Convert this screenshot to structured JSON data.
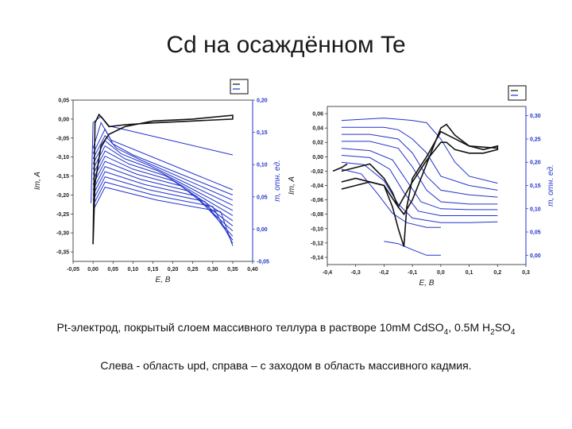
{
  "slide": {
    "title": "Cd на осаждённом Te",
    "caption_part1": "Pt-электрод, покрытый слоем массивного теллура в растворе 10mM CdSO",
    "caption_sub1": "4",
    "caption_part2": ", 0.5M H",
    "caption_sub2": "2",
    "caption_part3": "SO",
    "caption_sub3": "4",
    "caption_line2": "Слева - область upd, справа – с заходом в область массивного кадмия."
  },
  "colors": {
    "blue": "#2233cc",
    "black": "#111111",
    "axis_right": "#2233cc"
  },
  "chart_data": [
    {
      "type": "line",
      "xlabel": "E, В",
      "ylabel_left": "Im, A",
      "ylabel_right": "m, отн. ед.",
      "xlim": [
        -0.05,
        0.4
      ],
      "ylim_left": [
        -0.375,
        0.05
      ],
      "ylim_right": [
        -0.05,
        0.2
      ],
      "x_ticks": [
        "-0,05",
        "0,00",
        "0,05",
        "0,10",
        "0,15",
        "0,20",
        "0,25",
        "0,30",
        "0,35",
        "0,40"
      ],
      "y_left_ticks": [
        "0,05",
        "0,00",
        "-0,05",
        "-0,10",
        "-0,15",
        "-0,20",
        "-0,25",
        "-0,30",
        "-0,35"
      ],
      "y_right_ticks": [
        "0,20",
        "0,15",
        "0,10",
        "0,05",
        "0,00",
        "-0,05"
      ],
      "current_series": [
        {
          "x": [
            0.0,
            0.005,
            0.02,
            0.04,
            0.08,
            0.15,
            0.25,
            0.35,
            0.35,
            0.25,
            0.15,
            0.08,
            0.04,
            0.025,
            0.015,
            0.005,
            0.0
          ],
          "y": [
            -0.33,
            -0.17,
            -0.07,
            -0.04,
            -0.02,
            -0.005,
            0.0,
            0.01,
            0.0,
            -0.005,
            -0.01,
            -0.015,
            -0.02,
            0.0,
            0.012,
            -0.01,
            -0.33
          ]
        }
      ],
      "mass_series": [
        {
          "x": [
            -0.005,
            0.0,
            0.02,
            0.04,
            0.35
          ],
          "y": [
            0.04,
            0.165,
            0.175,
            0.16,
            0.115
          ]
        },
        {
          "x": [
            0.0,
            0.02,
            0.045,
            0.35
          ],
          "y": [
            0.125,
            0.165,
            0.138,
            0.061
          ]
        },
        {
          "x": [
            0.0,
            0.03,
            0.05,
            0.1,
            0.35
          ],
          "y": [
            0.117,
            0.155,
            0.132,
            0.115,
            0.053
          ]
        },
        {
          "x": [
            0.0,
            0.03,
            0.06,
            0.12,
            0.35
          ],
          "y": [
            0.109,
            0.145,
            0.125,
            0.107,
            0.045
          ]
        },
        {
          "x": [
            0.0,
            0.03,
            0.07,
            0.14,
            0.35
          ],
          "y": [
            0.101,
            0.137,
            0.117,
            0.099,
            0.037
          ]
        },
        {
          "x": [
            0.0,
            0.03,
            0.08,
            0.16,
            0.35
          ],
          "y": [
            0.093,
            0.129,
            0.109,
            0.091,
            0.029
          ]
        },
        {
          "x": [
            0.0,
            0.03,
            0.09,
            0.18,
            0.35
          ],
          "y": [
            0.085,
            0.121,
            0.101,
            0.083,
            0.021
          ]
        },
        {
          "x": [
            0.0,
            0.03,
            0.1,
            0.2,
            0.35
          ],
          "y": [
            0.077,
            0.113,
            0.093,
            0.075,
            0.013
          ]
        },
        {
          "x": [
            0.0,
            0.03,
            0.11,
            0.22,
            0.35
          ],
          "y": [
            0.069,
            0.105,
            0.085,
            0.067,
            0.005
          ]
        },
        {
          "x": [
            0.0,
            0.03,
            0.12,
            0.24,
            0.35
          ],
          "y": [
            0.061,
            0.097,
            0.077,
            0.059,
            -0.003
          ]
        },
        {
          "x": [
            0.0,
            0.03,
            0.13,
            0.26,
            0.35
          ],
          "y": [
            0.053,
            0.089,
            0.069,
            0.051,
            -0.011
          ]
        },
        {
          "x": [
            0.0,
            0.03,
            0.14,
            0.28,
            0.35
          ],
          "y": [
            0.045,
            0.081,
            0.061,
            0.043,
            -0.017
          ]
        },
        {
          "x": [
            0.0,
            0.03,
            0.15,
            0.3,
            0.35
          ],
          "y": [
            0.037,
            0.073,
            0.053,
            0.035,
            -0.022
          ]
        },
        {
          "x": [
            0.0,
            0.03,
            0.16,
            0.32,
            0.35
          ],
          "y": [
            0.029,
            0.065,
            0.045,
            0.027,
            -0.026
          ]
        }
      ]
    },
    {
      "type": "line",
      "xlabel": "E, В",
      "ylabel_left": "Im, A",
      "ylabel_right": "m, отн. ед.",
      "xlim": [
        -0.4,
        0.3
      ],
      "ylim_left": [
        -0.15,
        0.07
      ],
      "ylim_right": [
        -0.02,
        0.32
      ],
      "x_ticks": [
        "-0,4",
        "-0,3",
        "-0,2",
        "-0,1",
        "0,0",
        "0,1",
        "0,2",
        "0,3"
      ],
      "y_left_ticks": [
        "0,06",
        "0,04",
        "0,02",
        "0,00",
        "-0,02",
        "-0,04",
        "-0,06",
        "-0,08",
        "-0,10",
        "-0,12",
        "-0,14"
      ],
      "y_right_ticks": [
        "0,30",
        "0,25",
        "0,20",
        "0,15",
        "0,10",
        "0,05",
        "0,00"
      ],
      "current_series": [
        {
          "x": [
            -0.35,
            -0.3,
            -0.25,
            -0.2,
            -0.17,
            -0.15,
            -0.13,
            -0.1,
            -0.07,
            -0.05,
            -0.02,
            0.0,
            0.02,
            0.05,
            0.1,
            0.15,
            0.2,
            0.2,
            0.15,
            0.1,
            0.05,
            0.02,
            0.0,
            -0.05,
            -0.1,
            -0.15,
            -0.2,
            -0.3,
            -0.35
          ],
          "y": [
            -0.02,
            -0.015,
            -0.01,
            -0.03,
            -0.05,
            -0.07,
            -0.08,
            -0.06,
            -0.03,
            -0.01,
            0.02,
            0.04,
            0.045,
            0.03,
            0.015,
            0.01,
            0.015,
            0.01,
            0.005,
            0.005,
            0.01,
            0.02,
            0.02,
            -0.005,
            -0.035,
            -0.07,
            -0.04,
            -0.03,
            -0.035
          ]
        },
        {
          "x": [
            -0.35,
            -0.3,
            -0.25,
            -0.2,
            -0.17,
            -0.15,
            -0.13,
            -0.12,
            -0.1,
            -0.05,
            0.0,
            0.05,
            0.1,
            0.2
          ],
          "y": [
            -0.045,
            -0.04,
            -0.035,
            -0.04,
            -0.07,
            -0.1,
            -0.125,
            -0.07,
            -0.03,
            0.0,
            0.035,
            0.025,
            0.015,
            0.012
          ]
        },
        {
          "x": [
            -0.38,
            -0.35,
            -0.33
          ],
          "y": [
            -0.02,
            -0.015,
            -0.01
          ]
        }
      ],
      "mass_series": [
        {
          "x": [
            -0.35,
            -0.2,
            -0.1,
            -0.05,
            0.0,
            0.05,
            0.1,
            0.2
          ],
          "y": [
            0.29,
            0.295,
            0.29,
            0.285,
            0.25,
            0.2,
            0.17,
            0.155
          ]
        },
        {
          "x": [
            -0.35,
            -0.2,
            -0.15,
            -0.1,
            -0.05,
            0.0,
            0.1,
            0.2
          ],
          "y": [
            0.275,
            0.275,
            0.27,
            0.25,
            0.22,
            0.17,
            0.15,
            0.14
          ]
        },
        {
          "x": [
            -0.35,
            -0.25,
            -0.15,
            -0.1,
            -0.05,
            0.0,
            0.1,
            0.2
          ],
          "y": [
            0.26,
            0.26,
            0.25,
            0.22,
            0.17,
            0.14,
            0.13,
            0.125
          ]
        },
        {
          "x": [
            -0.35,
            -0.25,
            -0.15,
            -0.1,
            -0.05,
            0.0,
            0.1,
            0.2
          ],
          "y": [
            0.245,
            0.245,
            0.23,
            0.19,
            0.14,
            0.115,
            0.11,
            0.11
          ]
        },
        {
          "x": [
            -0.35,
            -0.25,
            -0.17,
            -0.12,
            -0.07,
            0.0,
            0.1,
            0.2
          ],
          "y": [
            0.23,
            0.225,
            0.205,
            0.16,
            0.115,
            0.1,
            0.098,
            0.098
          ]
        },
        {
          "x": [
            -0.35,
            -0.25,
            -0.18,
            -0.13,
            -0.08,
            0.0,
            0.1,
            0.2
          ],
          "y": [
            0.215,
            0.21,
            0.185,
            0.135,
            0.095,
            0.085,
            0.085,
            0.085
          ]
        },
        {
          "x": [
            -0.35,
            -0.27,
            -0.2,
            -0.15,
            -0.1,
            0.0,
            0.1,
            0.2
          ],
          "y": [
            0.2,
            0.195,
            0.16,
            0.11,
            0.08,
            0.07,
            0.07,
            0.072
          ]
        },
        {
          "x": [
            -0.35,
            -0.28,
            -0.22,
            -0.17,
            -0.12,
            -0.05,
            0.0
          ],
          "y": [
            0.185,
            0.175,
            0.13,
            0.09,
            0.07,
            0.06,
            0.06
          ]
        },
        {
          "x": [
            -0.2,
            -0.15,
            -0.1,
            -0.05,
            0.0
          ],
          "y": [
            0.03,
            0.025,
            0.012,
            0.0,
            0.0
          ]
        }
      ]
    }
  ]
}
